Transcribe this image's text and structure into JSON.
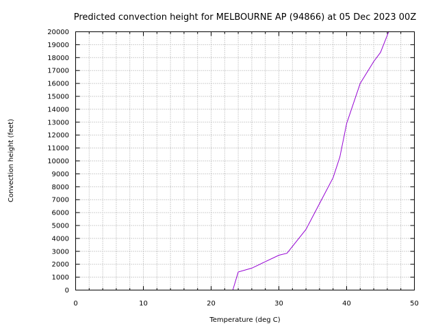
{
  "chart_data": {
    "type": "line",
    "title": "Predicted convection height for MELBOURNE AP (94866) at 05 Dec 2023 00Z",
    "xlabel": "Temperature (deg C)",
    "ylabel": "Convection height (feet)",
    "xlim": [
      0,
      50
    ],
    "ylim": [
      0,
      20000
    ],
    "xticks": [
      0,
      10,
      20,
      30,
      40,
      50
    ],
    "yticks": [
      0,
      1000,
      2000,
      3000,
      4000,
      5000,
      6000,
      7000,
      8000,
      9000,
      10000,
      11000,
      12000,
      13000,
      14000,
      15000,
      16000,
      17000,
      18000,
      19000,
      20000
    ],
    "xgrid_step": 2,
    "ygrid_step": 1000,
    "grid": true,
    "series_color": "#9400d3",
    "series": [
      {
        "x": [
          23.2,
          24.0,
          26.0,
          28.0,
          30.0,
          31.2,
          34.0,
          36.0,
          38.0,
          39.0,
          40.0,
          42.0,
          44.0,
          45.0,
          46.2
        ],
        "y": [
          0,
          1400,
          1700,
          2200,
          2700,
          2850,
          4700,
          6700,
          8700,
          10300,
          12900,
          16000,
          17700,
          18400,
          20000
        ]
      }
    ]
  }
}
